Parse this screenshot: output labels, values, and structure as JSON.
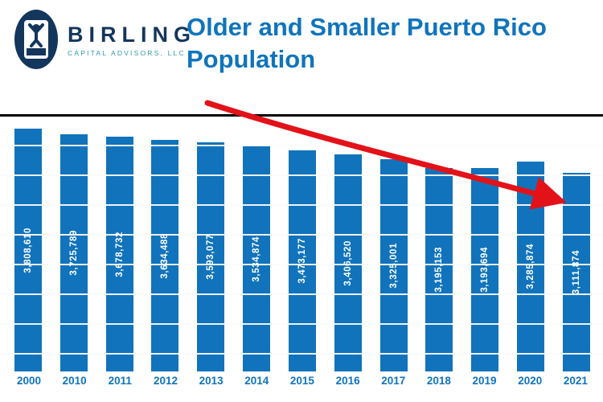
{
  "logo": {
    "brand": "BIRLING",
    "subtitle": "CAPITAL ADVISORS, LLC"
  },
  "title": "Older and Smaller Puerto Rico Population",
  "colors": {
    "bar": "#1173bb",
    "title_blue": "#0f74bc",
    "arrow_red": "#e31219",
    "logo_navy": "#14365c",
    "logo_teal": "#2d9aa8"
  },
  "chart_data": {
    "type": "bar",
    "title": "Older and Smaller Puerto Rico Population",
    "categories": [
      "2000",
      "2010",
      "2011",
      "2012",
      "2013",
      "2014",
      "2015",
      "2016",
      "2017",
      "2018",
      "2019",
      "2020",
      "2021"
    ],
    "values": [
      3808610,
      3725789,
      3678732,
      3634488,
      3593077,
      3534874,
      3473177,
      3406520,
      3325001,
      3195153,
      3193694,
      3285874,
      3111874
    ],
    "value_labels": [
      "3,808,610",
      "3,725,789",
      "3,678,732",
      "3,634,488",
      "3,593,077",
      "3,534,874",
      "3,473,177",
      "3,406,520",
      "3,325,001",
      "3,195,153",
      "3,193,694",
      "3,285,874",
      "3,111,874"
    ],
    "xlabel": "",
    "ylabel": "",
    "ylim": [
      0,
      4000000
    ],
    "grid": true,
    "legend": "none",
    "annotation": "red downward trend arrow pointing to 2021 bar"
  }
}
